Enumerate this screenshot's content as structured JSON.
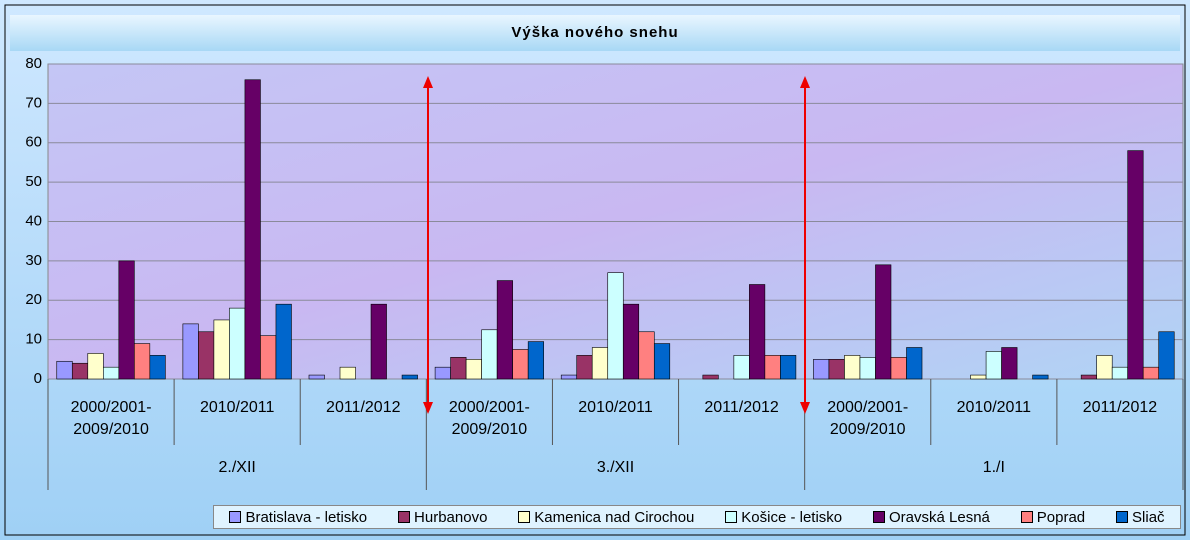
{
  "chart_data": {
    "type": "bar",
    "title": "Výška nového snehu",
    "categories": [
      "2000/2001-2009/2010",
      "2010/2011",
      "2011/2012",
      "2000/2001-2009/2010",
      "2010/2011",
      "2011/2012",
      "2000/2001-2009/2010",
      "2010/2011",
      "2011/2012"
    ],
    "groups": [
      "2./XII",
      "3./XII",
      "1./I"
    ],
    "series": [
      {
        "name": "Bratislava - letisko",
        "color": "#9999ff",
        "values": [
          4.5,
          14,
          1,
          3,
          1,
          0,
          5,
          0,
          0
        ]
      },
      {
        "name": "Hurbanovo",
        "color": "#993366",
        "values": [
          4,
          12,
          0,
          5.5,
          6,
          1,
          5,
          0,
          1
        ]
      },
      {
        "name": "Kamenica nad Cirochou",
        "color": "#ffffcc",
        "values": [
          6.5,
          15,
          3,
          5,
          8,
          0,
          6,
          1,
          6
        ]
      },
      {
        "name": "Košice - letisko",
        "color": "#ccffff",
        "values": [
          3,
          18,
          0,
          12.5,
          27,
          6,
          5.5,
          7,
          3
        ]
      },
      {
        "name": "Oravská Lesná",
        "color": "#660066",
        "values": [
          30,
          76,
          19,
          25,
          19,
          24,
          29,
          8,
          58
        ]
      },
      {
        "name": "Poprad",
        "color": "#ff8080",
        "values": [
          9,
          11,
          0,
          7.5,
          12,
          6,
          5.5,
          0,
          3
        ]
      },
      {
        "name": "Sliač",
        "color": "#0066cc",
        "values": [
          6,
          19,
          1,
          9.5,
          9,
          6,
          8,
          1,
          12
        ]
      }
    ],
    "ylim": [
      0,
      80
    ],
    "yticks": [
      0,
      10,
      20,
      30,
      40,
      50,
      60,
      70,
      80
    ],
    "grid": true,
    "legend": "bottom"
  }
}
